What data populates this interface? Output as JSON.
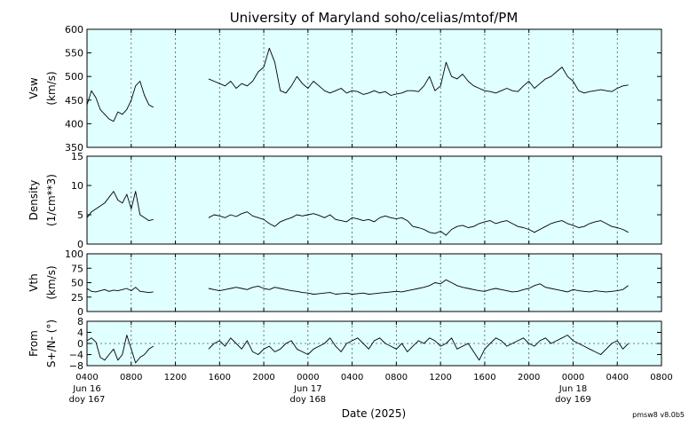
{
  "chart_data": {
    "type": "line",
    "title": "University of Maryland  soho/celias/mtof/PM",
    "xlabel": "Date (2025)",
    "version": "pmsw8 v8.0b5",
    "x_range_hours": [
      4,
      56
    ],
    "x_ticks": [
      {
        "h": 4,
        "label": "0400"
      },
      {
        "h": 8,
        "label": "0800"
      },
      {
        "h": 12,
        "label": "1200"
      },
      {
        "h": 16,
        "label": "1600"
      },
      {
        "h": 20,
        "label": "2000"
      },
      {
        "h": 24,
        "label": "0000"
      },
      {
        "h": 28,
        "label": "0400"
      },
      {
        "h": 32,
        "label": "0800"
      },
      {
        "h": 36,
        "label": "1200"
      },
      {
        "h": 40,
        "label": "1600"
      },
      {
        "h": 44,
        "label": "2000"
      },
      {
        "h": 48,
        "label": "0000"
      },
      {
        "h": 52,
        "label": "0400"
      },
      {
        "h": 56,
        "label": "0800"
      }
    ],
    "date_labels": [
      {
        "h": 4,
        "date": "Jun 16",
        "doy": "doy 167"
      },
      {
        "h": 24,
        "date": "Jun 17",
        "doy": "doy 168"
      },
      {
        "h": 48,
        "date": "Jun 18",
        "doy": "doy 169"
      }
    ],
    "panels": [
      {
        "name": "Vsw",
        "ylabel": [
          "Vsw",
          "(km/s)"
        ],
        "ylim": [
          350,
          600
        ],
        "yticks": [
          350,
          400,
          450,
          500,
          550,
          600
        ],
        "zero_line": false,
        "segments": [
          {
            "x": [
              4.0,
              4.4,
              4.8,
              5.2,
              5.6,
              6.0,
              6.4,
              6.8,
              7.2,
              7.6,
              8.0,
              8.4,
              8.8,
              9.2,
              9.6,
              10.0
            ],
            "y": [
              440,
              470,
              455,
              430,
              420,
              410,
              405,
              425,
              420,
              430,
              450,
              480,
              490,
              460,
              440,
              435
            ]
          },
          {
            "x": [
              15.0,
              15.5,
              16.0,
              16.5,
              17.0,
              17.5,
              18.0,
              18.5,
              19.0,
              19.5,
              20.0,
              20.5,
              21.0,
              21.5,
              22.0,
              22.5,
              23.0,
              23.5,
              24.0,
              24.5,
              25.0,
              25.5,
              26.0,
              26.5,
              27.0,
              27.5,
              28.0,
              28.5,
              29.0,
              29.5,
              30.0,
              30.5,
              31.0,
              31.5,
              32.0,
              32.5,
              33.0,
              33.5,
              34.0,
              34.5,
              35.0,
              35.5,
              36.0,
              36.5,
              37.0,
              37.5,
              38.0,
              38.5,
              39.0,
              39.5,
              40.0,
              40.5,
              41.0,
              41.5,
              42.0,
              42.5,
              43.0,
              43.5,
              44.0,
              44.5,
              45.0,
              45.5,
              46.0,
              46.5,
              47.0,
              47.5,
              48.0,
              48.5,
              49.0,
              49.5,
              50.0,
              50.5,
              51.0,
              51.5,
              52.0,
              52.5,
              53.0
            ],
            "y": [
              495,
              490,
              485,
              480,
              490,
              475,
              485,
              480,
              490,
              510,
              520,
              560,
              530,
              470,
              465,
              480,
              500,
              485,
              475,
              490,
              480,
              470,
              465,
              470,
              475,
              465,
              470,
              468,
              462,
              465,
              470,
              465,
              468,
              460,
              463,
              465,
              470,
              470,
              468,
              480,
              500,
              470,
              480,
              530,
              500,
              495,
              505,
              490,
              480,
              475,
              470,
              468,
              465,
              470,
              475,
              470,
              468,
              480,
              490,
              475,
              485,
              495,
              500,
              510,
              520,
              500,
              490,
              470,
              465,
              468,
              470,
              472,
              470,
              468,
              475,
              480,
              482
            ]
          }
        ]
      },
      {
        "name": "Density",
        "ylabel": [
          "Density",
          "(1/cm**3)"
        ],
        "ylim": [
          0,
          15
        ],
        "yticks": [
          0,
          5,
          10,
          15
        ],
        "zero_line": false,
        "segments": [
          {
            "x": [
              4.0,
              4.4,
              4.8,
              5.2,
              5.6,
              6.0,
              6.4,
              6.8,
              7.2,
              7.6,
              8.0,
              8.4,
              8.8,
              9.2,
              9.6,
              10.0
            ],
            "y": [
              4.5,
              5.5,
              6.0,
              6.5,
              7.0,
              8.0,
              9.0,
              7.5,
              7.0,
              8.5,
              6.0,
              9.0,
              5.0,
              4.5,
              4.0,
              4.2
            ]
          },
          {
            "x": [
              15.0,
              15.5,
              16.0,
              16.5,
              17.0,
              17.5,
              18.0,
              18.5,
              19.0,
              19.5,
              20.0,
              20.5,
              21.0,
              21.5,
              22.0,
              22.5,
              23.0,
              23.5,
              24.0,
              24.5,
              25.0,
              25.5,
              26.0,
              26.5,
              27.0,
              27.5,
              28.0,
              28.5,
              29.0,
              29.5,
              30.0,
              30.5,
              31.0,
              31.5,
              32.0,
              32.5,
              33.0,
              33.5,
              34.0,
              34.5,
              35.0,
              35.5,
              36.0,
              36.5,
              37.0,
              37.5,
              38.0,
              38.5,
              39.0,
              39.5,
              40.0,
              40.5,
              41.0,
              41.5,
              42.0,
              42.5,
              43.0,
              43.5,
              44.0,
              44.5,
              45.0,
              45.5,
              46.0,
              46.5,
              47.0,
              47.5,
              48.0,
              48.5,
              49.0,
              49.5,
              50.0,
              50.5,
              51.0,
              51.5,
              52.0,
              52.5,
              53.0
            ],
            "y": [
              4.5,
              5.0,
              4.8,
              4.5,
              5.0,
              4.7,
              5.2,
              5.5,
              4.8,
              4.5,
              4.2,
              3.5,
              3.0,
              3.8,
              4.2,
              4.5,
              5.0,
              4.8,
              5.0,
              5.2,
              4.9,
              4.5,
              5.0,
              4.2,
              4.0,
              3.8,
              4.5,
              4.3,
              4.0,
              4.2,
              3.8,
              4.5,
              4.8,
              4.5,
              4.3,
              4.5,
              4.0,
              3.0,
              2.8,
              2.5,
              2.0,
              1.8,
              2.2,
              1.5,
              2.5,
              3.0,
              3.2,
              2.8,
              3.0,
              3.5,
              3.8,
              4.0,
              3.5,
              3.8,
              4.0,
              3.5,
              3.0,
              2.8,
              2.5,
              2.0,
              2.5,
              3.0,
              3.5,
              3.8,
              4.0,
              3.5,
              3.2,
              2.8,
              3.0,
              3.5,
              3.8,
              4.0,
              3.5,
              3.0,
              2.8,
              2.5,
              2.0
            ]
          }
        ]
      },
      {
        "name": "Vth",
        "ylabel": [
          "Vth",
          "(km/s)"
        ],
        "ylim": [
          0,
          100
        ],
        "yticks": [
          0,
          25,
          50,
          75,
          100
        ],
        "zero_line": false,
        "segments": [
          {
            "x": [
              4.0,
              4.4,
              4.8,
              5.2,
              5.6,
              6.0,
              6.4,
              6.8,
              7.2,
              7.6,
              8.0,
              8.4,
              8.8,
              9.2,
              9.6,
              10.0
            ],
            "y": [
              40,
              35,
              34,
              36,
              38,
              35,
              37,
              36,
              38,
              40,
              36,
              42,
              35,
              34,
              33,
              34
            ]
          },
          {
            "x": [
              15.0,
              15.5,
              16.0,
              16.5,
              17.0,
              17.5,
              18.0,
              18.5,
              19.0,
              19.5,
              20.0,
              20.5,
              21.0,
              21.5,
              22.0,
              22.5,
              23.0,
              23.5,
              24.0,
              24.5,
              25.0,
              25.5,
              26.0,
              26.5,
              27.0,
              27.5,
              28.0,
              28.5,
              29.0,
              29.5,
              30.0,
              30.5,
              31.0,
              31.5,
              32.0,
              32.5,
              33.0,
              33.5,
              34.0,
              34.5,
              35.0,
              35.5,
              36.0,
              36.5,
              37.0,
              37.5,
              38.0,
              38.5,
              39.0,
              39.5,
              40.0,
              40.5,
              41.0,
              41.5,
              42.0,
              42.5,
              43.0,
              43.5,
              44.0,
              44.5,
              45.0,
              45.5,
              46.0,
              46.5,
              47.0,
              47.5,
              48.0,
              48.5,
              49.0,
              49.5,
              50.0,
              50.5,
              51.0,
              51.5,
              52.0,
              52.5,
              53.0
            ],
            "y": [
              40,
              38,
              36,
              38,
              40,
              42,
              40,
              38,
              42,
              44,
              40,
              38,
              42,
              40,
              38,
              36,
              35,
              33,
              32,
              30,
              31,
              32,
              33,
              30,
              31,
              32,
              30,
              31,
              32,
              30,
              31,
              32,
              33,
              34,
              35,
              34,
              36,
              38,
              40,
              42,
              45,
              50,
              48,
              55,
              50,
              45,
              42,
              40,
              38,
              36,
              35,
              38,
              40,
              38,
              36,
              34,
              35,
              38,
              40,
              45,
              48,
              42,
              40,
              38,
              36,
              34,
              38,
              36,
              35,
              34,
              36,
              35,
              34,
              35,
              36,
              38,
              45
            ]
          }
        ]
      },
      {
        "name": "From",
        "ylabel": [
          "From",
          "S+/N- (°)"
        ],
        "ylim": [
          -8,
          8
        ],
        "yticks": [
          -8,
          -4,
          0,
          4,
          8
        ],
        "ytick_labels": [
          "−8",
          "−4",
          "0",
          "4",
          "8"
        ],
        "zero_line": true,
        "segments": [
          {
            "x": [
              4.0,
              4.4,
              4.8,
              5.2,
              5.6,
              6.0,
              6.4,
              6.8,
              7.2,
              7.6,
              8.0,
              8.4,
              8.8,
              9.2,
              9.6,
              10.0
            ],
            "y": [
              1.0,
              2.0,
              0.5,
              -5.0,
              -6.0,
              -4.0,
              -2.0,
              -6.0,
              -4.0,
              3.0,
              -2.0,
              -7.0,
              -5.0,
              -4.0,
              -2.0,
              -1.0
            ]
          },
          {
            "x": [
              15.0,
              15.5,
              16.0,
              16.5,
              17.0,
              17.5,
              18.0,
              18.5,
              19.0,
              19.5,
              20.0,
              20.5,
              21.0,
              21.5,
              22.0,
              22.5,
              23.0,
              23.5,
              24.0,
              24.5,
              25.0,
              25.5,
              26.0,
              26.5,
              27.0,
              27.5,
              28.0,
              28.5,
              29.0,
              29.5,
              30.0,
              30.5,
              31.0,
              31.5,
              32.0,
              32.5,
              33.0,
              33.5,
              34.0,
              34.5,
              35.0,
              35.5,
              36.0,
              36.5,
              37.0,
              37.5,
              38.0,
              38.5,
              39.0,
              39.5,
              40.0,
              40.5,
              41.0,
              41.5,
              42.0,
              42.5,
              43.0,
              43.5,
              44.0,
              44.5,
              45.0,
              45.5,
              46.0,
              46.5,
              47.0,
              47.5,
              48.0,
              48.5,
              49.0,
              49.5,
              50.0,
              50.5,
              51.0,
              51.5,
              52.0,
              52.5,
              53.0
            ],
            "y": [
              -2.0,
              0.0,
              1.0,
              -1.0,
              2.0,
              0.0,
              -2.0,
              1.0,
              -3.0,
              -4.0,
              -2.0,
              -1.0,
              -3.0,
              -2.0,
              0.0,
              1.0,
              -2.0,
              -3.0,
              -4.0,
              -2.0,
              -1.0,
              0.0,
              2.0,
              -1.0,
              -3.0,
              0.0,
              1.0,
              2.0,
              0.0,
              -2.0,
              1.0,
              2.0,
              0.0,
              -1.0,
              -2.0,
              0.0,
              -3.0,
              -1.0,
              1.0,
              0.0,
              2.0,
              1.0,
              -1.0,
              0.0,
              2.0,
              -2.0,
              -1.0,
              0.0,
              -3.0,
              -6.0,
              -2.0,
              0.0,
              2.0,
              1.0,
              -1.0,
              0.0,
              1.0,
              2.0,
              0.0,
              -1.0,
              1.0,
              2.0,
              0.0,
              1.0,
              2.0,
              3.0,
              1.0,
              0.0,
              -1.0,
              -2.0,
              -3.0,
              -4.0,
              -2.0,
              0.0,
              1.0,
              -2.0,
              0.0
            ]
          }
        ]
      }
    ]
  },
  "colors": {
    "plot_background": "#e0ffff",
    "trace": "#000000",
    "grid": "#555555"
  }
}
